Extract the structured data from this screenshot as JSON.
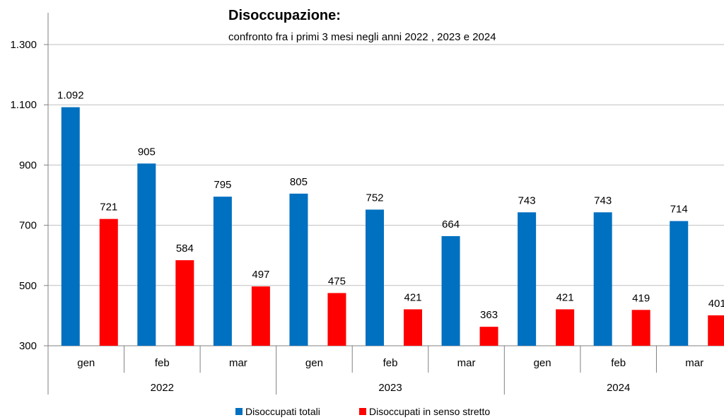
{
  "chart_data": {
    "type": "bar",
    "title": "Disoccupazione:",
    "subtitle": "confronto fra i primi 3 mesi negli anni 2022 , 2023 e 2024",
    "groups": [
      "2022",
      "2023",
      "2024"
    ],
    "months": [
      "gen",
      "feb",
      "mar"
    ],
    "categories": [
      "gen 2022",
      "feb 2022",
      "mar 2022",
      "gen 2023",
      "feb 2023",
      "mar 2023",
      "gen 2024",
      "feb 2024",
      "mar 2024"
    ],
    "series": [
      {
        "name": "Disoccupati totali",
        "color": "#0070C0",
        "values": [
          1092,
          905,
          795,
          805,
          752,
          664,
          743,
          743,
          714
        ],
        "labels": [
          "1.092",
          "905",
          "795",
          "805",
          "752",
          "664",
          "743",
          "743",
          "714"
        ]
      },
      {
        "name": "Disoccupati in senso stretto",
        "color": "#FF0000",
        "values": [
          721,
          584,
          497,
          475,
          421,
          363,
          421,
          419,
          401
        ],
        "labels": [
          "721",
          "584",
          "497",
          "475",
          "421",
          "363",
          "421",
          "419",
          "401"
        ]
      }
    ],
    "ylim": [
      300,
      1300
    ],
    "yticks": [
      300,
      500,
      700,
      900,
      1100,
      1300
    ],
    "ytick_labels": [
      "300",
      "500",
      "700",
      "900",
      "1.100",
      "1.300"
    ],
    "grid": true,
    "legend_position": "bottom"
  }
}
